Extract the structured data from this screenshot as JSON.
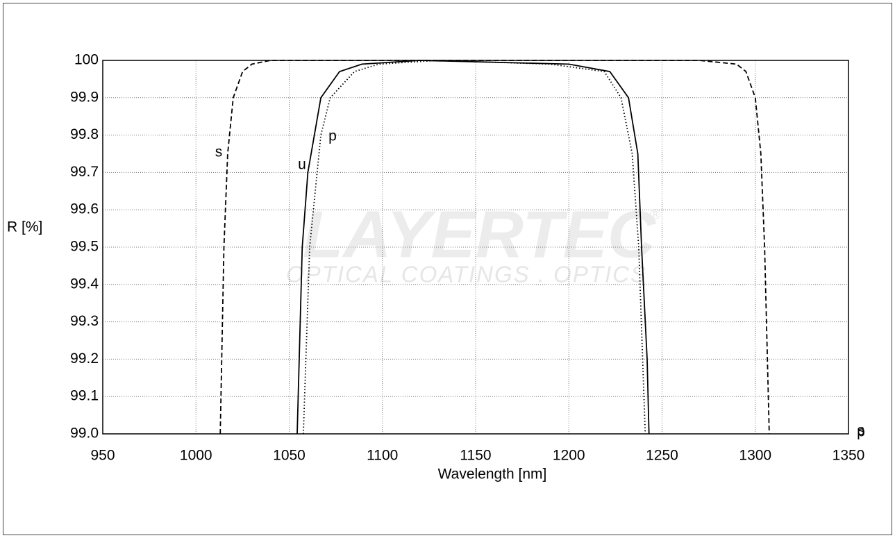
{
  "chart_data": {
    "type": "line",
    "x_label": "Wavelength [nm]",
    "y_label": "R [%]",
    "watermark": [
      "LAYERTEC",
      "OPTICAL COATINGS . OPTICS",
      "®"
    ],
    "xlim": [
      950,
      1350
    ],
    "xticks": [
      950,
      1000,
      1050,
      1100,
      1150,
      1200,
      1250,
      1300,
      1350
    ],
    "ylim": [
      99,
      100
    ],
    "yticks": [
      {
        "value": 99,
        "label": "99.0"
      },
      99.1,
      99.2,
      99.3,
      99.4,
      99.5,
      99.6,
      99.7,
      99.8,
      99.9,
      100
    ],
    "grid": true,
    "series": [
      {
        "name": "s",
        "color": "#000",
        "dash": "dashed",
        "x": [
          1013,
          1015,
          1017,
          1020,
          1025,
          1030,
          1040,
          1050,
          1270,
          1290,
          1295,
          1300,
          1303,
          1305,
          1307.5
        ],
        "values": [
          99.0,
          99.5,
          99.75,
          99.9,
          99.97,
          99.99,
          100,
          100,
          100,
          99.99,
          99.97,
          99.9,
          99.75,
          99.5,
          99.0
        ]
      },
      {
        "name": "u",
        "color": "#000",
        "dash": "solid",
        "x": [
          1054.3,
          1057,
          1060,
          1067,
          1077,
          1089,
          1120,
          1200,
          1222,
          1232,
          1237,
          1239,
          1242,
          1243
        ],
        "values": [
          99.0,
          99.5,
          99.7,
          99.9,
          99.97,
          99.99,
          100,
          99.99,
          99.97,
          99.9,
          99.75,
          99.5,
          99.2,
          99.0
        ]
      },
      {
        "name": "p",
        "color": "#000",
        "dash": "dotted",
        "x": [
          1057.6,
          1061,
          1067,
          1072,
          1085,
          1098,
          1130,
          1190,
          1219,
          1228,
          1234,
          1237.5,
          1241
        ],
        "values": [
          99.0,
          99.5,
          99.8,
          99.9,
          99.97,
          99.99,
          100,
          99.99,
          99.97,
          99.9,
          99.75,
          99.5,
          99.0
        ]
      }
    ],
    "annotations": [
      "s",
      "u",
      "p",
      "p",
      "s"
    ]
  }
}
